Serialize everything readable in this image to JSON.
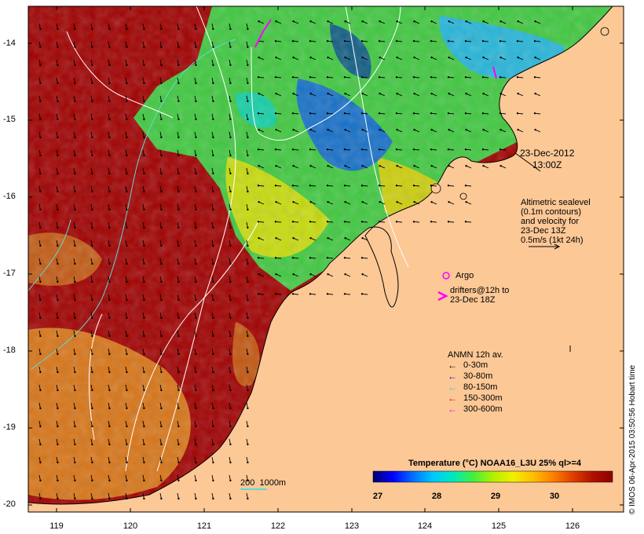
{
  "y_axis_labels": [
    "-14",
    "-15",
    "-16",
    "-17",
    "-18",
    "-19",
    "-20"
  ],
  "x_axis_labels": [
    "119",
    "120",
    "121",
    "122",
    "123",
    "124",
    "125",
    "126"
  ],
  "timestamp": {
    "date": "23-Dec-2012",
    "time": "13:00Z"
  },
  "altimetry_note": [
    "Altimetric sealevel",
    "(0.1m contours)",
    "and velocity for",
    "23-Dec 13Z",
    "0.5m/s (1kt 24h)"
  ],
  "argo_label": "Argo",
  "drifters_label": [
    "drifters@12h to",
    "23-Dec 18Z"
  ],
  "anmn_legend": {
    "title": "ANMN 12h av.",
    "items": [
      {
        "label": "0-30m",
        "color": "#000000"
      },
      {
        "label": "30-80m",
        "color": "#0000ff"
      },
      {
        "label": "80-150m",
        "color": "#00d8d8"
      },
      {
        "label": "150-300m",
        "color": "#ff0000"
      },
      {
        "label": "300-600m",
        "color": "#ff00ff"
      }
    ]
  },
  "colorbar": {
    "title": "Temperature (°C) NOAA16_L3U 25% ql>=4",
    "ticks": [
      "27",
      "28",
      "29",
      "30"
    ],
    "colors": [
      "#00006e",
      "#0000ff",
      "#0070ff",
      "#00c8ff",
      "#00e8c0",
      "#40f040",
      "#b0f000",
      "#f0f000",
      "#ffc000",
      "#ff8000",
      "#e04000",
      "#b01000",
      "#900000"
    ]
  },
  "scale_label": "200  1000m",
  "credit": "© IMOS 06-Apr-2015 03:50:56 Hobart time",
  "colors": {
    "land": "#fcc896",
    "hot": "#a00000",
    "warm": "#e09020",
    "cool": "#40d040",
    "cold": "#1040c0"
  }
}
